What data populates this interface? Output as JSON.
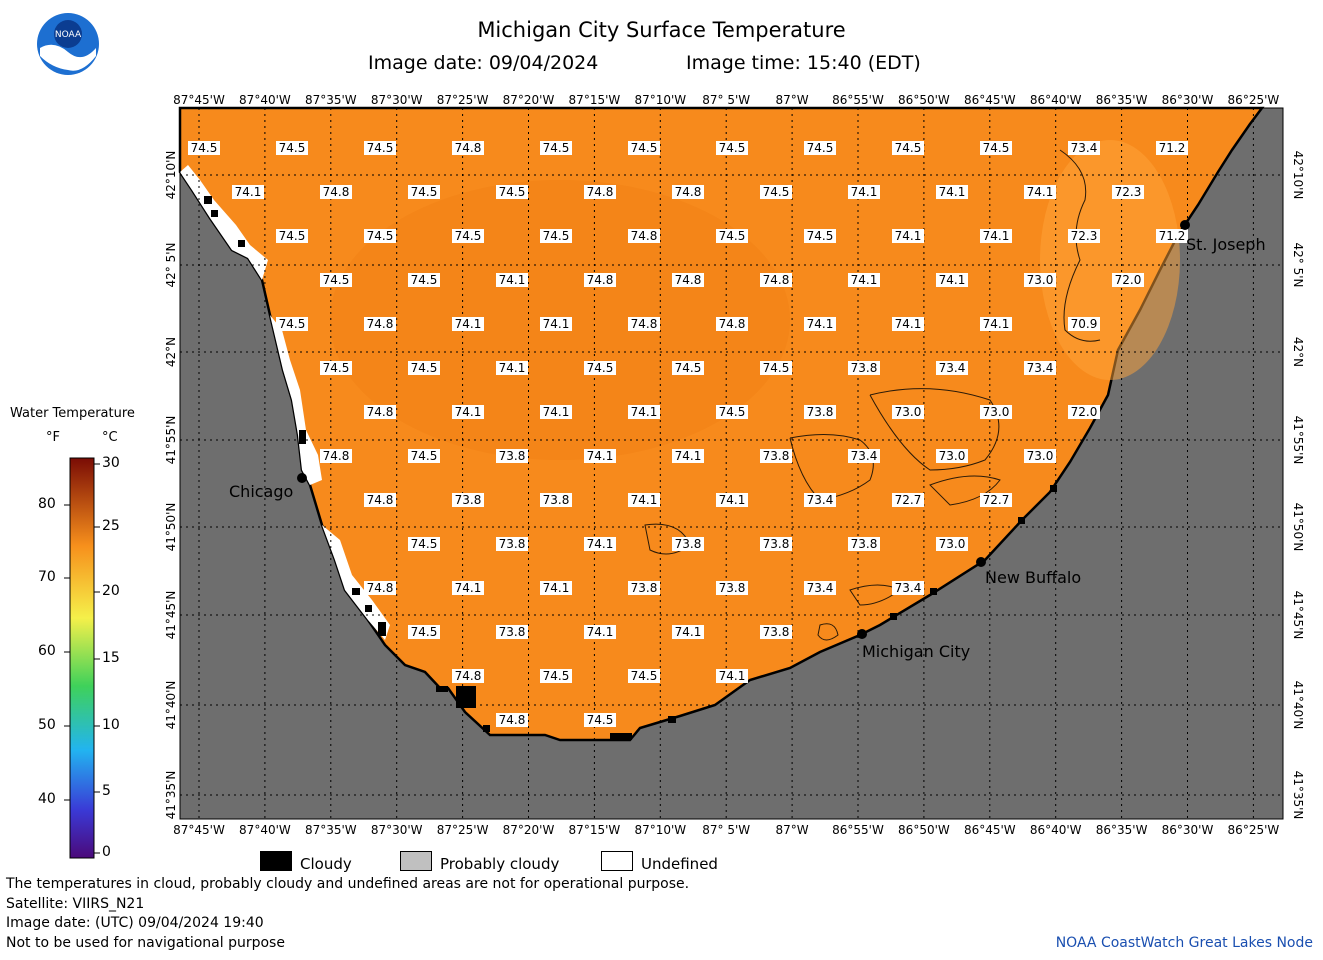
{
  "header": {
    "title": "Michigan City Surface Temperature",
    "image_date": "Image date: 09/04/2024",
    "image_time": "Image time: 15:40 (EDT)",
    "logo_text": "NOAA"
  },
  "map": {
    "lon_labels": [
      "87°45'W",
      "87°40'W",
      "87°35'W",
      "87°30'W",
      "87°25'W",
      "87°20'W",
      "87°15'W",
      "87°10'W",
      "87° 5'W",
      "87°W",
      "86°55'W",
      "86°50'W",
      "86°45'W",
      "86°40'W",
      "86°35'W",
      "86°30'W",
      "86°25'W"
    ],
    "lat_labels": [
      "42°10'N",
      "42° 5'N",
      "42°N",
      "41°55'N",
      "41°50'N",
      "41°45'N",
      "41°40'N",
      "41°35'N"
    ],
    "places": [
      "Chicago",
      "St. Joseph",
      "New Buffalo",
      "Michigan City"
    ],
    "temperature_rows": [
      [
        "74.5",
        "74.5",
        "74.5",
        "74.8",
        "74.5",
        "74.5",
        "74.5",
        "74.5",
        "74.5",
        "74.5",
        "73.4",
        "71.2"
      ],
      [
        "74.1",
        "74.8",
        "74.5",
        "74.5",
        "74.8",
        "74.8",
        "74.5",
        "74.1",
        "74.1",
        "74.1",
        "72.3"
      ],
      [
        "74.5",
        "74.5",
        "74.5",
        "74.5",
        "74.8",
        "74.5",
        "74.5",
        "74.1",
        "74.1",
        "72.3",
        "71.2"
      ],
      [
        "74.5",
        "74.5",
        "74.1",
        "74.8",
        "74.8",
        "74.8",
        "74.1",
        "74.1",
        "73.0",
        "72.0"
      ],
      [
        "74.5",
        "74.8",
        "74.1",
        "74.1",
        "74.8",
        "74.8",
        "74.1",
        "74.1",
        "74.1",
        "70.9"
      ],
      [
        "74.5",
        "74.5",
        "74.1",
        "74.5",
        "74.5",
        "74.5",
        "73.8",
        "73.4",
        "73.4"
      ],
      [
        "74.8",
        "74.1",
        "74.1",
        "74.1",
        "74.5",
        "73.8",
        "73.0",
        "73.0",
        "72.0"
      ],
      [
        "74.8",
        "74.5",
        "73.8",
        "74.1",
        "74.1",
        "73.8",
        "73.4",
        "73.0",
        "73.0"
      ],
      [
        "74.8",
        "73.8",
        "73.8",
        "74.1",
        "74.1",
        "73.4",
        "72.7",
        "72.7"
      ],
      [
        "74.5",
        "73.8",
        "74.1",
        "73.8",
        "73.8",
        "73.8",
        "73.0"
      ],
      [
        "74.8",
        "74.1",
        "74.1",
        "73.8",
        "73.8",
        "73.4",
        "73.4"
      ],
      [
        "74.5",
        "73.8",
        "74.1",
        "74.1",
        "73.8"
      ],
      [
        "74.8",
        "74.5",
        "74.5",
        "74.1"
      ],
      [
        "74.8",
        "74.5"
      ]
    ]
  },
  "legend": {
    "title": "Water Temperature",
    "unit_f": "°F",
    "unit_c": "°C",
    "f_ticks": [
      "80",
      "70",
      "60",
      "50",
      "40"
    ],
    "c_ticks": [
      "30",
      "25",
      "20",
      "15",
      "10",
      "5",
      "0"
    ],
    "cloudy": "Cloudy",
    "probably_cloudy": "Probably cloudy",
    "undefined": "Undefined",
    "colors": {
      "land": "#6e6e6e",
      "water": "#f78a1c",
      "cloud": "#000000",
      "probably_cloudy": "#c0c0c0",
      "undefined": "#ffffff"
    }
  },
  "footer": {
    "line1": "The temperatures in cloud, probably cloudy and undefined areas are not for operational purpose.",
    "line2": "Satellite: VIIRS_N21",
    "line3": "Image date: (UTC) 09/04/2024  19:40",
    "line4": "Not to be used for navigational purpose",
    "credit": "NOAA CoastWatch Great Lakes Node"
  }
}
